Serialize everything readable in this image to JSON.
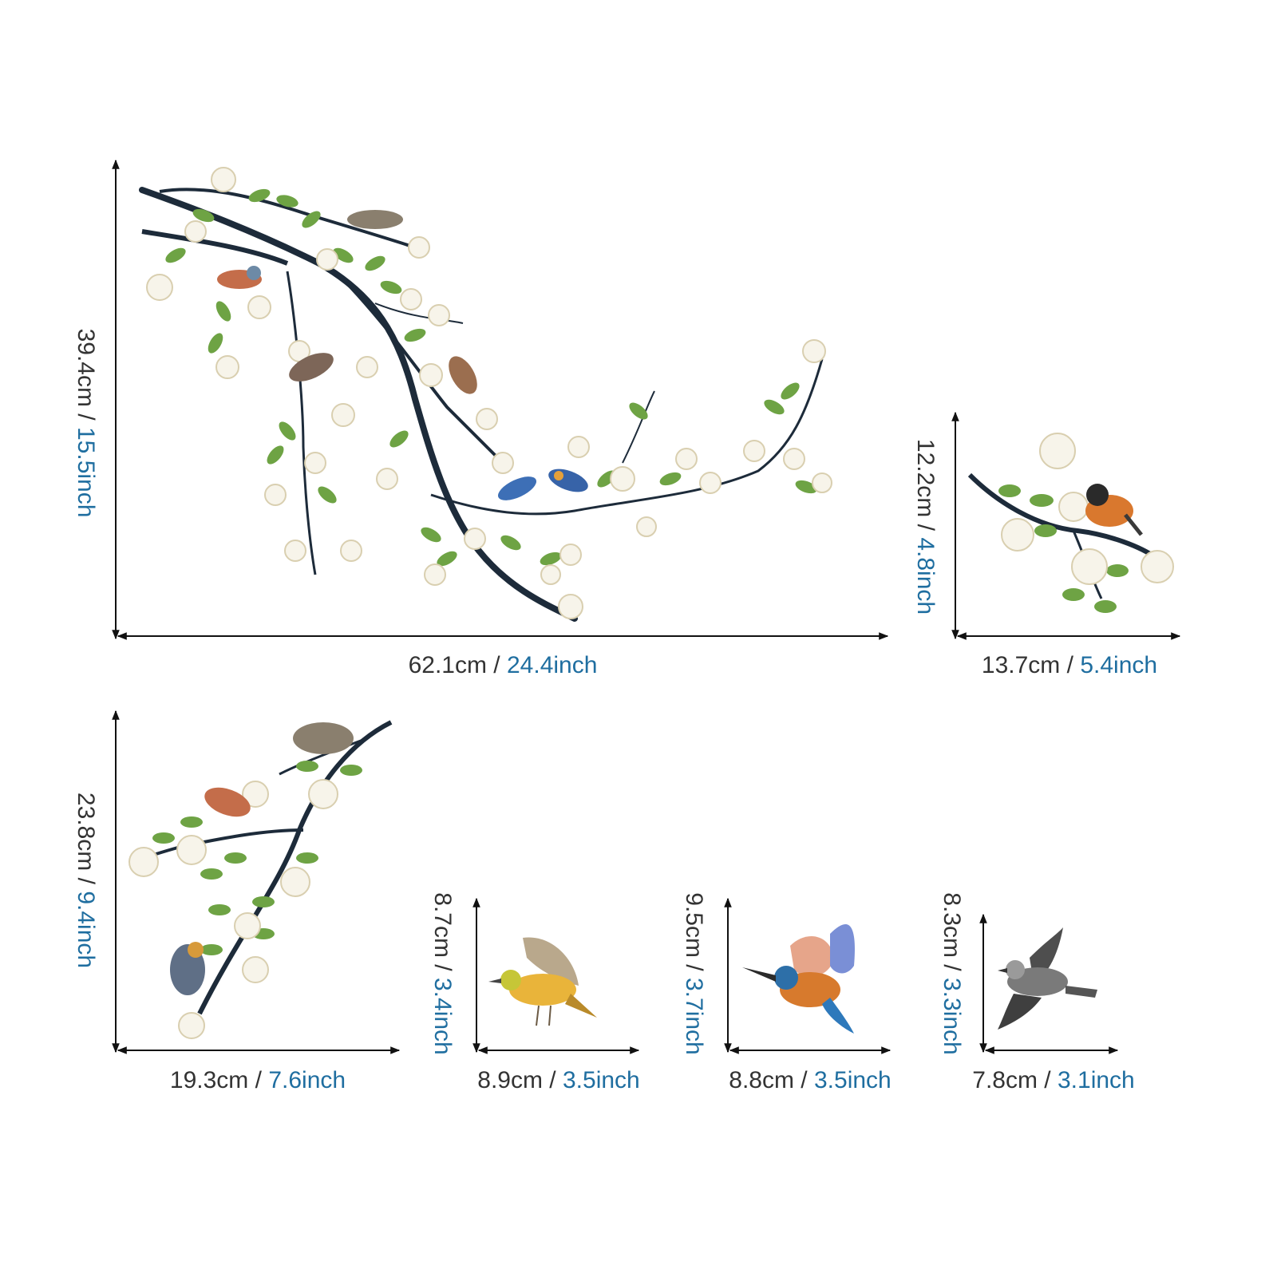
{
  "colors": {
    "background": "#ffffff",
    "line": "#111111",
    "cm_text": "#333333",
    "inch_text": "#1f6ea0",
    "branch": "#1d2b3a",
    "leaf": "#6ea344",
    "leaf_dark": "#4f7f2e",
    "blossom": "#f7f4ea",
    "blossom_edge": "#d9cfb0"
  },
  "items": [
    {
      "id": "large-branch",
      "width_cm": "62.1cm",
      "width_in": "24.4inch",
      "height_cm": "39.4cm",
      "height_in": "15.5inch",
      "icon": "branch-with-birds-icon"
    },
    {
      "id": "small-branch",
      "width_cm": "13.7cm",
      "width_in": "5.4inch",
      "height_cm": "12.2cm",
      "height_in": "4.8inch",
      "icon": "branch-with-bird-icon"
    },
    {
      "id": "medium-branch",
      "width_cm": "19.3cm",
      "width_in": "7.6inch",
      "height_cm": "23.8cm",
      "height_in": "9.4inch",
      "icon": "branch-with-birds-icon"
    },
    {
      "id": "yellow-bird",
      "width_cm": "8.9cm",
      "width_in": "3.5inch",
      "height_cm": "8.7cm",
      "height_in": "3.4inch",
      "icon": "yellow-bird-icon"
    },
    {
      "id": "kingfisher",
      "width_cm": "8.8cm",
      "width_in": "3.5inch",
      "height_cm": "9.5cm",
      "height_in": "3.7inch",
      "icon": "kingfisher-icon"
    },
    {
      "id": "grey-bird",
      "width_cm": "7.8cm",
      "width_in": "3.1inch",
      "height_cm": "8.3cm",
      "height_in": "3.3inch",
      "icon": "grey-bird-icon"
    }
  ],
  "separator": " / "
}
